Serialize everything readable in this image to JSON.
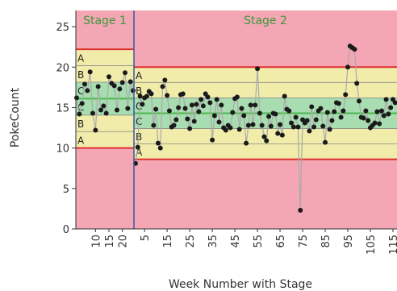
{
  "chart_data": {
    "type": "line",
    "title": "",
    "xlabel": "Week Number with Stage",
    "ylabel": "PokeCount",
    "ylim": [
      0,
      27
    ],
    "yticks": [
      0,
      5,
      10,
      15,
      20,
      25
    ],
    "x_ticks": [
      {
        "label": "10",
        "week": 10,
        "stage": 1
      },
      {
        "label": "15",
        "week": 15,
        "stage": 1
      },
      {
        "label": "20",
        "week": 20,
        "stage": 1
      },
      {
        "label": "5",
        "week": 5,
        "stage": 2
      },
      {
        "label": "15",
        "week": 15,
        "stage": 2
      },
      {
        "label": "25",
        "week": 25,
        "stage": 2
      },
      {
        "label": "35",
        "week": 35,
        "stage": 2
      },
      {
        "label": "45",
        "week": 45,
        "stage": 2
      },
      {
        "label": "55",
        "week": 55,
        "stage": 2
      },
      {
        "label": "65",
        "week": 65,
        "stage": 2
      },
      {
        "label": "75",
        "week": 75,
        "stage": 2
      },
      {
        "label": "85",
        "week": 85,
        "stage": 2
      },
      {
        "label": "95",
        "week": 95,
        "stage": 2
      },
      {
        "label": "105",
        "week": 105,
        "stage": 2
      },
      {
        "label": "115",
        "week": 115,
        "stage": 2
      }
    ],
    "stages": [
      {
        "name": "Stage 1",
        "weeks": [
          3,
          24
        ],
        "center": 16.1,
        "ucl": 22.2,
        "lcl": 10.0
      },
      {
        "name": "Stage 2",
        "weeks": [
          1,
          116
        ],
        "center": 14.3,
        "ucl": 20.0,
        "lcl": 8.6
      }
    ],
    "zone_labels": [
      "A",
      "B",
      "C",
      "C",
      "B",
      "A"
    ],
    "colors": {
      "zone_a": "#f4a6b4",
      "zone_b": "#f1ecaa",
      "zone_c": "#a7ddb0",
      "control_limit": "#e03030",
      "center_line": "#4fb84f",
      "zone_line": "#888888",
      "stage_divider": "#3a56a8",
      "series_line": "#aaaaaa",
      "point": "#1a1a1a"
    },
    "series": [
      {
        "stage": 1,
        "points": [
          [
            3,
            16.2
          ],
          [
            4,
            14.2
          ],
          [
            5,
            15.5
          ],
          [
            6,
            17.9
          ],
          [
            7,
            17.1
          ],
          [
            8,
            19.4
          ],
          [
            9,
            14.3
          ],
          [
            10,
            12.2
          ],
          [
            11,
            17.6
          ],
          [
            12,
            14.7
          ],
          [
            13,
            15.2
          ],
          [
            14,
            14.3
          ],
          [
            15,
            18.8
          ],
          [
            16,
            18.0
          ],
          [
            17,
            17.7
          ],
          [
            18,
            14.7
          ],
          [
            19,
            17.3
          ],
          [
            20,
            18.1
          ],
          [
            21,
            19.3
          ],
          [
            22,
            14.9
          ],
          [
            23,
            18.2
          ],
          [
            24,
            17.1
          ]
        ]
      },
      {
        "stage": 2,
        "points": [
          [
            1,
            8.1
          ],
          [
            2,
            10.1
          ],
          [
            3,
            16.4
          ],
          [
            4,
            15.4
          ],
          [
            5,
            16.2
          ],
          [
            6,
            16.4
          ],
          [
            7,
            17.0
          ],
          [
            8,
            16.7
          ],
          [
            9,
            12.8
          ],
          [
            10,
            14.8
          ],
          [
            11,
            10.6
          ],
          [
            12,
            10.0
          ],
          [
            13,
            17.6
          ],
          [
            14,
            18.4
          ],
          [
            15,
            16.5
          ],
          [
            16,
            14.6
          ],
          [
            17,
            12.6
          ],
          [
            18,
            12.8
          ],
          [
            19,
            13.5
          ],
          [
            20,
            15.0
          ],
          [
            21,
            16.6
          ],
          [
            22,
            16.7
          ],
          [
            23,
            14.9
          ],
          [
            24,
            13.6
          ],
          [
            25,
            12.4
          ],
          [
            26,
            15.3
          ],
          [
            27,
            13.3
          ],
          [
            28,
            15.4
          ],
          [
            29,
            14.5
          ],
          [
            30,
            16.0
          ],
          [
            31,
            15.2
          ],
          [
            32,
            16.7
          ],
          [
            33,
            16.3
          ],
          [
            34,
            15.6
          ],
          [
            35,
            11.0
          ],
          [
            36,
            14.0
          ],
          [
            37,
            16.0
          ],
          [
            38,
            13.2
          ],
          [
            39,
            15.3
          ],
          [
            40,
            12.5
          ],
          [
            41,
            12.2
          ],
          [
            42,
            12.8
          ],
          [
            43,
            12.5
          ],
          [
            44,
            14.4
          ],
          [
            45,
            16.1
          ],
          [
            46,
            16.3
          ],
          [
            47,
            12.3
          ],
          [
            48,
            14.9
          ],
          [
            49,
            14.0
          ],
          [
            50,
            10.6
          ],
          [
            51,
            12.8
          ],
          [
            52,
            15.3
          ],
          [
            53,
            12.9
          ],
          [
            54,
            15.3
          ],
          [
            55,
            19.8
          ],
          [
            56,
            14.3
          ],
          [
            57,
            12.8
          ],
          [
            58,
            11.4
          ],
          [
            59,
            10.9
          ],
          [
            60,
            13.9
          ],
          [
            61,
            12.7
          ],
          [
            62,
            14.3
          ],
          [
            63,
            14.2
          ],
          [
            64,
            11.8
          ],
          [
            65,
            12.9
          ],
          [
            66,
            11.6
          ],
          [
            67,
            16.4
          ],
          [
            68,
            14.8
          ],
          [
            69,
            14.6
          ],
          [
            70,
            13.1
          ],
          [
            71,
            12.6
          ],
          [
            72,
            13.8
          ],
          [
            73,
            12.6
          ],
          [
            74,
            2.3
          ],
          [
            75,
            13.5
          ],
          [
            76,
            13.1
          ],
          [
            77,
            13.4
          ],
          [
            78,
            12.1
          ],
          [
            79,
            15.1
          ],
          [
            80,
            12.6
          ],
          [
            81,
            13.5
          ],
          [
            82,
            14.6
          ],
          [
            83,
            14.9
          ],
          [
            84,
            12.7
          ],
          [
            85,
            10.7
          ],
          [
            86,
            14.4
          ],
          [
            87,
            12.3
          ],
          [
            88,
            13.4
          ],
          [
            89,
            14.5
          ],
          [
            90,
            15.6
          ],
          [
            91,
            15.5
          ],
          [
            92,
            13.8
          ],
          [
            93,
            14.6
          ],
          [
            94,
            16.6
          ],
          [
            95,
            20.0
          ],
          [
            96,
            22.6
          ],
          [
            97,
            22.4
          ],
          [
            98,
            22.2
          ],
          [
            99,
            18.0
          ],
          [
            100,
            15.8
          ],
          [
            101,
            13.8
          ],
          [
            102,
            13.7
          ],
          [
            103,
            14.6
          ],
          [
            104,
            13.4
          ],
          [
            105,
            12.5
          ],
          [
            106,
            12.8
          ],
          [
            107,
            13.1
          ],
          [
            108,
            14.5
          ],
          [
            109,
            13.0
          ],
          [
            110,
            14.6
          ],
          [
            111,
            14.0
          ],
          [
            112,
            16.0
          ],
          [
            113,
            14.2
          ],
          [
            114,
            15.0
          ],
          [
            115,
            16.0
          ],
          [
            116,
            15.6
          ]
        ]
      }
    ]
  }
}
